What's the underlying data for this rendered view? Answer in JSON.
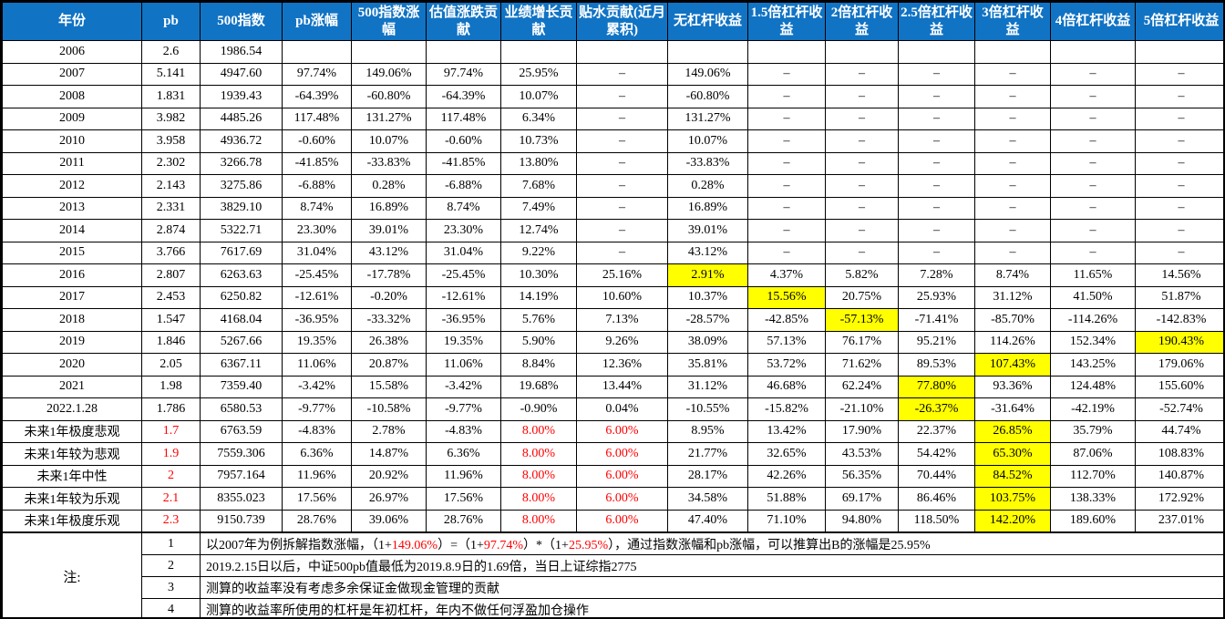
{
  "colors": {
    "header_bg": "#1173C4",
    "header_text": "#FFFFFF",
    "highlight_yellow": "#FFFF00",
    "red_text": "#FF0000",
    "grid": "#000000"
  },
  "table": {
    "columns": [
      "年份",
      "pb",
      "500指数",
      "pb涨幅",
      "500指数涨幅",
      "估值涨跌贡献",
      "业绩增长贡献",
      "贴水贡献(近月累积)",
      "无杠杆收益",
      "1.5倍杠杆收益",
      "2倍杠杆收益",
      "2.5倍杠杆收益",
      "3倍杠杆收益",
      "4倍杠杆收益",
      "5倍杠杆收益"
    ],
    "rows": [
      {
        "label": "2006",
        "cells": [
          "2.6",
          "1986.54",
          "",
          "",
          "",
          "",
          "",
          "",
          "",
          "",
          "",
          "",
          "",
          ""
        ]
      },
      {
        "label": "2007",
        "cells": [
          "5.141",
          "4947.60",
          "97.74%",
          "149.06%",
          "97.74%",
          "25.95%",
          "–",
          "149.06%",
          "–",
          "–",
          "–",
          "–",
          "–",
          "–"
        ]
      },
      {
        "label": "2008",
        "cells": [
          "1.831",
          "1939.43",
          "-64.39%",
          "-60.80%",
          "-64.39%",
          "10.07%",
          "–",
          "-60.80%",
          "–",
          "–",
          "–",
          "–",
          "–",
          "–"
        ]
      },
      {
        "label": "2009",
        "cells": [
          "3.982",
          "4485.26",
          "117.48%",
          "131.27%",
          "117.48%",
          "6.34%",
          "–",
          "131.27%",
          "–",
          "–",
          "–",
          "–",
          "–",
          "–"
        ]
      },
      {
        "label": "2010",
        "cells": [
          "3.958",
          "4936.72",
          "-0.60%",
          "10.07%",
          "-0.60%",
          "10.73%",
          "–",
          "10.07%",
          "–",
          "–",
          "–",
          "–",
          "–",
          "–"
        ]
      },
      {
        "label": "2011",
        "cells": [
          "2.302",
          "3266.78",
          "-41.85%",
          "-33.83%",
          "-41.85%",
          "13.80%",
          "–",
          "-33.83%",
          "–",
          "–",
          "–",
          "–",
          "–",
          "–"
        ]
      },
      {
        "label": "2012",
        "cells": [
          "2.143",
          "3275.86",
          "-6.88%",
          "0.28%",
          "-6.88%",
          "7.68%",
          "–",
          "0.28%",
          "–",
          "–",
          "–",
          "–",
          "–",
          "–"
        ]
      },
      {
        "label": "2013",
        "cells": [
          "2.331",
          "3829.10",
          "8.74%",
          "16.89%",
          "8.74%",
          "7.49%",
          "–",
          "16.89%",
          "–",
          "–",
          "–",
          "–",
          "–",
          "–"
        ]
      },
      {
        "label": "2014",
        "cells": [
          "2.874",
          "5322.71",
          "23.30%",
          "39.01%",
          "23.30%",
          "12.74%",
          "–",
          "39.01%",
          "–",
          "–",
          "–",
          "–",
          "–",
          "–"
        ]
      },
      {
        "label": "2015",
        "cells": [
          "3.766",
          "7617.69",
          "31.04%",
          "43.12%",
          "31.04%",
          "9.22%",
          "–",
          "43.12%",
          "–",
          "–",
          "–",
          "–",
          "–",
          "–"
        ]
      },
      {
        "label": "2016",
        "cells": [
          "2.807",
          "6263.63",
          "-25.45%",
          "-17.78%",
          "-25.45%",
          "10.30%",
          "25.16%",
          {
            "t": "2.91%",
            "hl": "yellow"
          },
          "4.37%",
          "5.82%",
          "7.28%",
          "8.74%",
          "11.65%",
          "14.56%"
        ]
      },
      {
        "label": "2017",
        "cells": [
          "2.453",
          "6250.82",
          "-12.61%",
          "-0.20%",
          "-12.61%",
          "14.19%",
          "10.60%",
          "10.37%",
          {
            "t": "15.56%",
            "hl": "yellow"
          },
          "20.75%",
          "25.93%",
          "31.12%",
          "41.50%",
          "51.87%"
        ]
      },
      {
        "label": "2018",
        "cells": [
          "1.547",
          "4168.04",
          "-36.95%",
          "-33.32%",
          "-36.95%",
          "5.76%",
          "7.13%",
          "-28.57%",
          "-42.85%",
          {
            "t": "-57.13%",
            "hl": "yellow"
          },
          "-71.41%",
          "-85.70%",
          "-114.26%",
          "-142.83%"
        ]
      },
      {
        "label": "2019",
        "cells": [
          "1.846",
          "5267.66",
          "19.35%",
          "26.38%",
          "19.35%",
          "5.90%",
          "9.26%",
          "38.09%",
          "57.13%",
          "76.17%",
          "95.21%",
          "114.26%",
          "152.34%",
          {
            "t": "190.43%",
            "hl": "yellow"
          }
        ]
      },
      {
        "label": "2020",
        "cells": [
          "2.05",
          "6367.11",
          "11.06%",
          "20.87%",
          "11.06%",
          "8.84%",
          "12.36%",
          "35.81%",
          "53.72%",
          "71.62%",
          "89.53%",
          {
            "t": "107.43%",
            "hl": "yellow"
          },
          "143.25%",
          "179.06%"
        ]
      },
      {
        "label": "2021",
        "cells": [
          "1.98",
          "7359.40",
          "-3.42%",
          "15.58%",
          "-3.42%",
          "19.68%",
          "13.44%",
          "31.12%",
          "46.68%",
          "62.24%",
          {
            "t": "77.80%",
            "hl": "yellow"
          },
          "93.36%",
          "124.48%",
          "155.60%"
        ]
      },
      {
        "label": "2022.1.28",
        "cells": [
          "1.786",
          "6580.53",
          "-9.77%",
          "-10.58%",
          "-9.77%",
          "-0.90%",
          "0.04%",
          "-10.55%",
          "-15.82%",
          "-21.10%",
          {
            "t": "-26.37%",
            "hl": "yellow"
          },
          "-31.64%",
          "-42.19%",
          "-52.74%"
        ]
      },
      {
        "label": "未来1年极度悲观",
        "cells": [
          {
            "t": "1.7",
            "hl": "red"
          },
          "6763.59",
          "-4.83%",
          "2.78%",
          "-4.83%",
          {
            "t": "8.00%",
            "hl": "red"
          },
          {
            "t": "6.00%",
            "hl": "red"
          },
          "8.95%",
          "13.42%",
          "17.90%",
          "22.37%",
          {
            "t": "26.85%",
            "hl": "yellow"
          },
          "35.79%",
          "44.74%"
        ]
      },
      {
        "label": "未来1年较为悲观",
        "cells": [
          {
            "t": "1.9",
            "hl": "red"
          },
          "7559.306",
          "6.36%",
          "14.87%",
          "6.36%",
          {
            "t": "8.00%",
            "hl": "red"
          },
          {
            "t": "6.00%",
            "hl": "red"
          },
          "21.77%",
          "32.65%",
          "43.53%",
          "54.42%",
          {
            "t": "65.30%",
            "hl": "yellow"
          },
          "87.06%",
          "108.83%"
        ]
      },
      {
        "label": "未来1年中性",
        "cells": [
          {
            "t": "2",
            "hl": "red"
          },
          "7957.164",
          "11.96%",
          "20.92%",
          "11.96%",
          {
            "t": "8.00%",
            "hl": "red"
          },
          {
            "t": "6.00%",
            "hl": "red"
          },
          "28.17%",
          "42.26%",
          "56.35%",
          "70.44%",
          {
            "t": "84.52%",
            "hl": "yellow"
          },
          "112.70%",
          "140.87%"
        ]
      },
      {
        "label": "未来1年较为乐观",
        "cells": [
          {
            "t": "2.1",
            "hl": "red"
          },
          "8355.023",
          "17.56%",
          "26.97%",
          "17.56%",
          {
            "t": "8.00%",
            "hl": "red"
          },
          {
            "t": "6.00%",
            "hl": "red"
          },
          "34.58%",
          "51.88%",
          "69.17%",
          "86.46%",
          {
            "t": "103.75%",
            "hl": "yellow"
          },
          "138.33%",
          "172.92%"
        ]
      },
      {
        "label": "未来1年极度乐观",
        "cells": [
          {
            "t": "2.3",
            "hl": "red"
          },
          "9150.739",
          "28.76%",
          "39.06%",
          "28.76%",
          {
            "t": "8.00%",
            "hl": "red"
          },
          {
            "t": "6.00%",
            "hl": "red"
          },
          "47.40%",
          "71.10%",
          "94.80%",
          "118.50%",
          {
            "t": "142.20%",
            "hl": "yellow"
          },
          "189.60%",
          "237.01%"
        ]
      }
    ]
  },
  "notes": {
    "label": "注:",
    "items": [
      {
        "num": "1",
        "segments": [
          {
            "t": "以2007年为例拆解指数涨幅，（1+"
          },
          {
            "t": "149.06%",
            "red": true
          },
          {
            "t": "）=（1+"
          },
          {
            "t": "97.74%",
            "red": true
          },
          {
            "t": "）*（1+"
          },
          {
            "t": "25.95%",
            "red": true
          },
          {
            "t": "），通过指数涨幅和pb涨幅，可以推算出B的涨幅是25.95%"
          }
        ]
      },
      {
        "num": "2",
        "segments": [
          {
            "t": "2019.2.15日以后，中证500pb值最低为2019.8.9日的1.69倍，当日上证综指2775"
          }
        ]
      },
      {
        "num": "3",
        "segments": [
          {
            "t": "测算的收益率没有考虑多余保证金做现金管理的贡献"
          }
        ]
      },
      {
        "num": "4",
        "segments": [
          {
            "t": "测算的收益率所使用的杠杆是年初杠杆，年内不做任何浮盈加仓操作"
          }
        ]
      }
    ]
  }
}
